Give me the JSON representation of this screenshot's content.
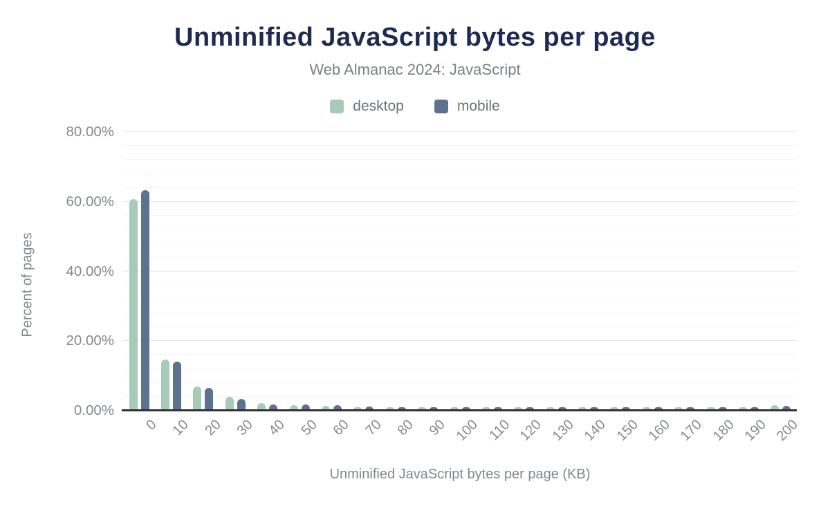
{
  "header": {
    "title": "Unminified JavaScript bytes per page",
    "subtitle": "Web Almanac 2024: JavaScript"
  },
  "colors": {
    "title_navy": "#1e2b50",
    "desktop_green": "#a8cbb8",
    "mobile_slate": "#5f7190",
    "axis_line": "#2f3136",
    "text_gray": "#82878d"
  },
  "legend": [
    {
      "label": "desktop",
      "color": "#a8cbb8"
    },
    {
      "label": "mobile",
      "color": "#5f7190"
    }
  ],
  "chart_data": {
    "type": "bar",
    "title": "Unminified JavaScript bytes per page",
    "subtitle": "Web Almanac 2024: JavaScript",
    "xlabel": "Unminified JavaScript bytes per page (KB)",
    "ylabel": "Percent of pages",
    "categories": [
      "0",
      "10",
      "20",
      "30",
      "40",
      "50",
      "60",
      "70",
      "80",
      "90",
      "100",
      "110",
      "120",
      "130",
      "140",
      "150",
      "160",
      "170",
      "180",
      "190",
      "200"
    ],
    "series": [
      {
        "name": "desktop",
        "color": "#a8cbb8",
        "values": [
          60.6,
          14.4,
          6.8,
          3.7,
          2.0,
          1.3,
          1.1,
          0.8,
          0.6,
          0.5,
          0.45,
          0.3,
          0.25,
          0.2,
          0.2,
          0.2,
          0.15,
          0.15,
          0.15,
          0.1,
          1.4
        ]
      },
      {
        "name": "mobile",
        "color": "#5f7190",
        "values": [
          63.2,
          13.9,
          6.4,
          3.2,
          1.6,
          1.5,
          1.3,
          1.0,
          0.7,
          0.6,
          0.5,
          0.35,
          0.3,
          0.25,
          0.25,
          0.2,
          0.2,
          0.2,
          0.15,
          0.15,
          1.1
        ]
      }
    ],
    "ylim": [
      0,
      80
    ],
    "y_ticks": [
      "0.00%",
      "20.00%",
      "40.00%",
      "60.00%",
      "80.00%"
    ],
    "y_tick_values": [
      0,
      20,
      40,
      60,
      80
    ],
    "grid": {
      "on": true,
      "major_step": 20,
      "minor_step": 4
    },
    "legend_position": "top"
  }
}
